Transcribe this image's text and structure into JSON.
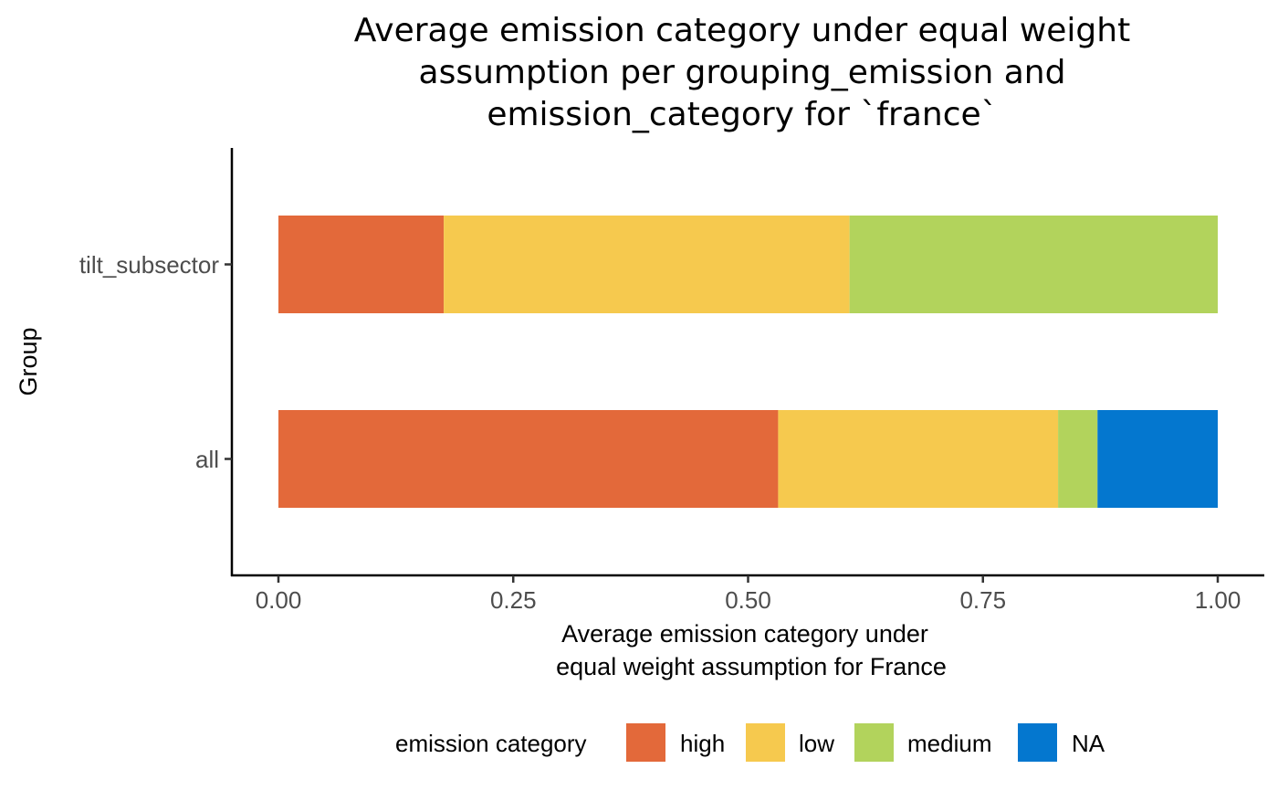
{
  "chart_data": {
    "type": "bar",
    "orientation": "horizontal",
    "stacked": true,
    "title_lines": [
      "Average emission category under equal weight",
      "assumption per grouping_emission and",
      "emission_category for `france`"
    ],
    "xlabel_lines": [
      "Average emission category under",
      "equal weight assumption for France"
    ],
    "ylabel": "Group",
    "categories": [
      "tilt_subsector",
      "all"
    ],
    "series": [
      {
        "name": "high",
        "color": "#E3693A",
        "values": [
          0.176,
          0.532
        ]
      },
      {
        "name": "low",
        "color": "#F6C94E",
        "values": [
          0.432,
          0.298
        ]
      },
      {
        "name": "medium",
        "color": "#B2D35C",
        "values": [
          0.392,
          0.042
        ]
      },
      {
        "name": "NA",
        "color": "#0477CF",
        "values": [
          0.0,
          0.128
        ]
      }
    ],
    "xlim": [
      0,
      1
    ],
    "xticks": [
      0,
      0.25,
      0.5,
      0.75,
      1
    ],
    "xtick_labels": [
      "0.00",
      "0.25",
      "0.50",
      "0.75",
      "1.00"
    ],
    "grid": false,
    "legend": {
      "title": "emission category",
      "position": "bottom",
      "entries": [
        "high",
        "low",
        "medium",
        "NA"
      ]
    }
  }
}
